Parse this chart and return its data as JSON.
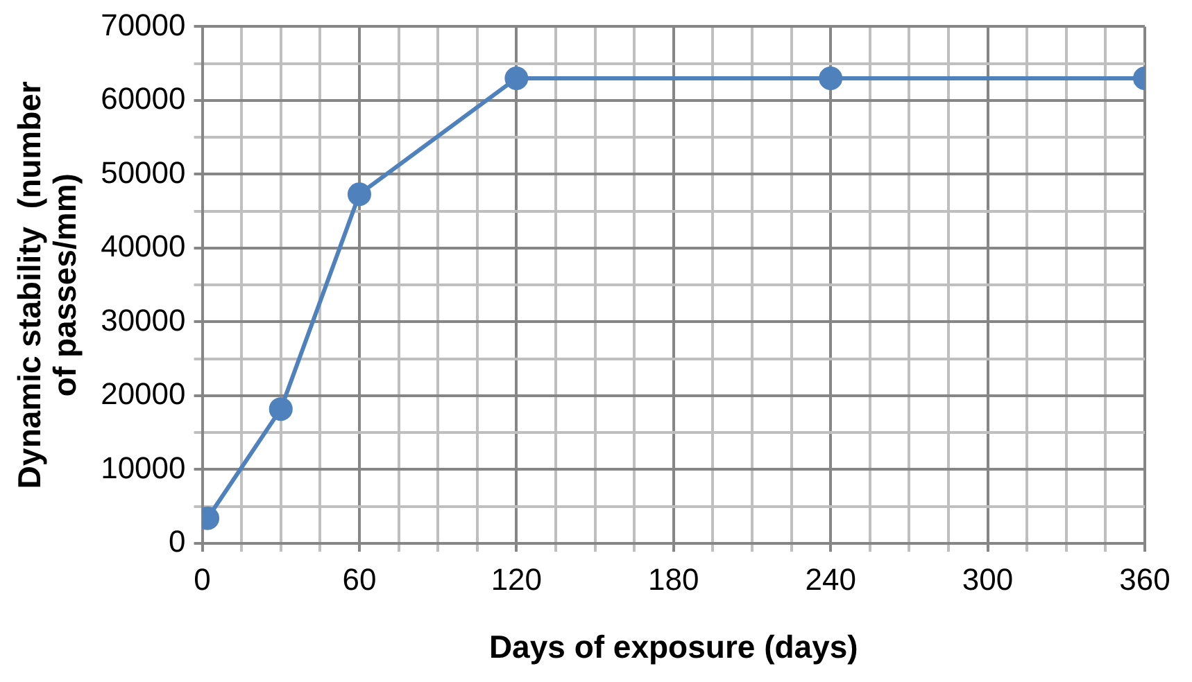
{
  "chart_data": {
    "type": "line",
    "xlabel": "Days of exposure (days)",
    "ylabel": "Dynamic stability  (number of passes/mm)",
    "x": [
      2,
      30,
      60,
      120,
      240,
      360
    ],
    "series": [
      {
        "color": "#4f81bd",
        "values": [
          3400,
          18200,
          47300,
          63000,
          63000,
          63000
        ]
      }
    ],
    "xlim": [
      0,
      360
    ],
    "xticks": [
      0,
      {
        "value": 15,
        "label": null
      },
      {
        "value": 30,
        "label": null
      },
      {
        "value": 45,
        "label": null
      },
      60,
      {
        "value": 75,
        "label": null
      },
      {
        "value": 90,
        "label": null
      },
      {
        "value": 105,
        "label": null
      },
      120,
      {
        "value": 135,
        "label": null
      },
      {
        "value": 150,
        "label": null
      },
      {
        "value": 165,
        "label": null
      },
      180,
      {
        "value": 195,
        "label": null
      },
      {
        "value": 210,
        "label": null
      },
      {
        "value": 225,
        "label": null
      },
      240,
      {
        "value": 255,
        "label": null
      },
      {
        "value": 270,
        "label": null
      },
      {
        "value": 285,
        "label": null
      },
      300,
      {
        "value": 315,
        "label": null
      },
      {
        "value": 330,
        "label": null
      },
      {
        "value": 345,
        "label": null
      },
      360
    ],
    "ylim": [
      0,
      70000
    ],
    "yticks": [
      0,
      {
        "value": 5000,
        "label": null
      },
      10000,
      {
        "value": 15000,
        "label": null
      },
      20000,
      {
        "value": 25000,
        "label": null
      },
      30000,
      {
        "value": 35000,
        "label": null
      },
      40000,
      {
        "value": 45000,
        "label": null
      },
      50000,
      {
        "value": 55000,
        "label": null
      },
      60000,
      {
        "value": 65000,
        "label": null
      },
      70000
    ],
    "grid": true,
    "marker": "circle",
    "line_style": "solid",
    "legend": false
  }
}
